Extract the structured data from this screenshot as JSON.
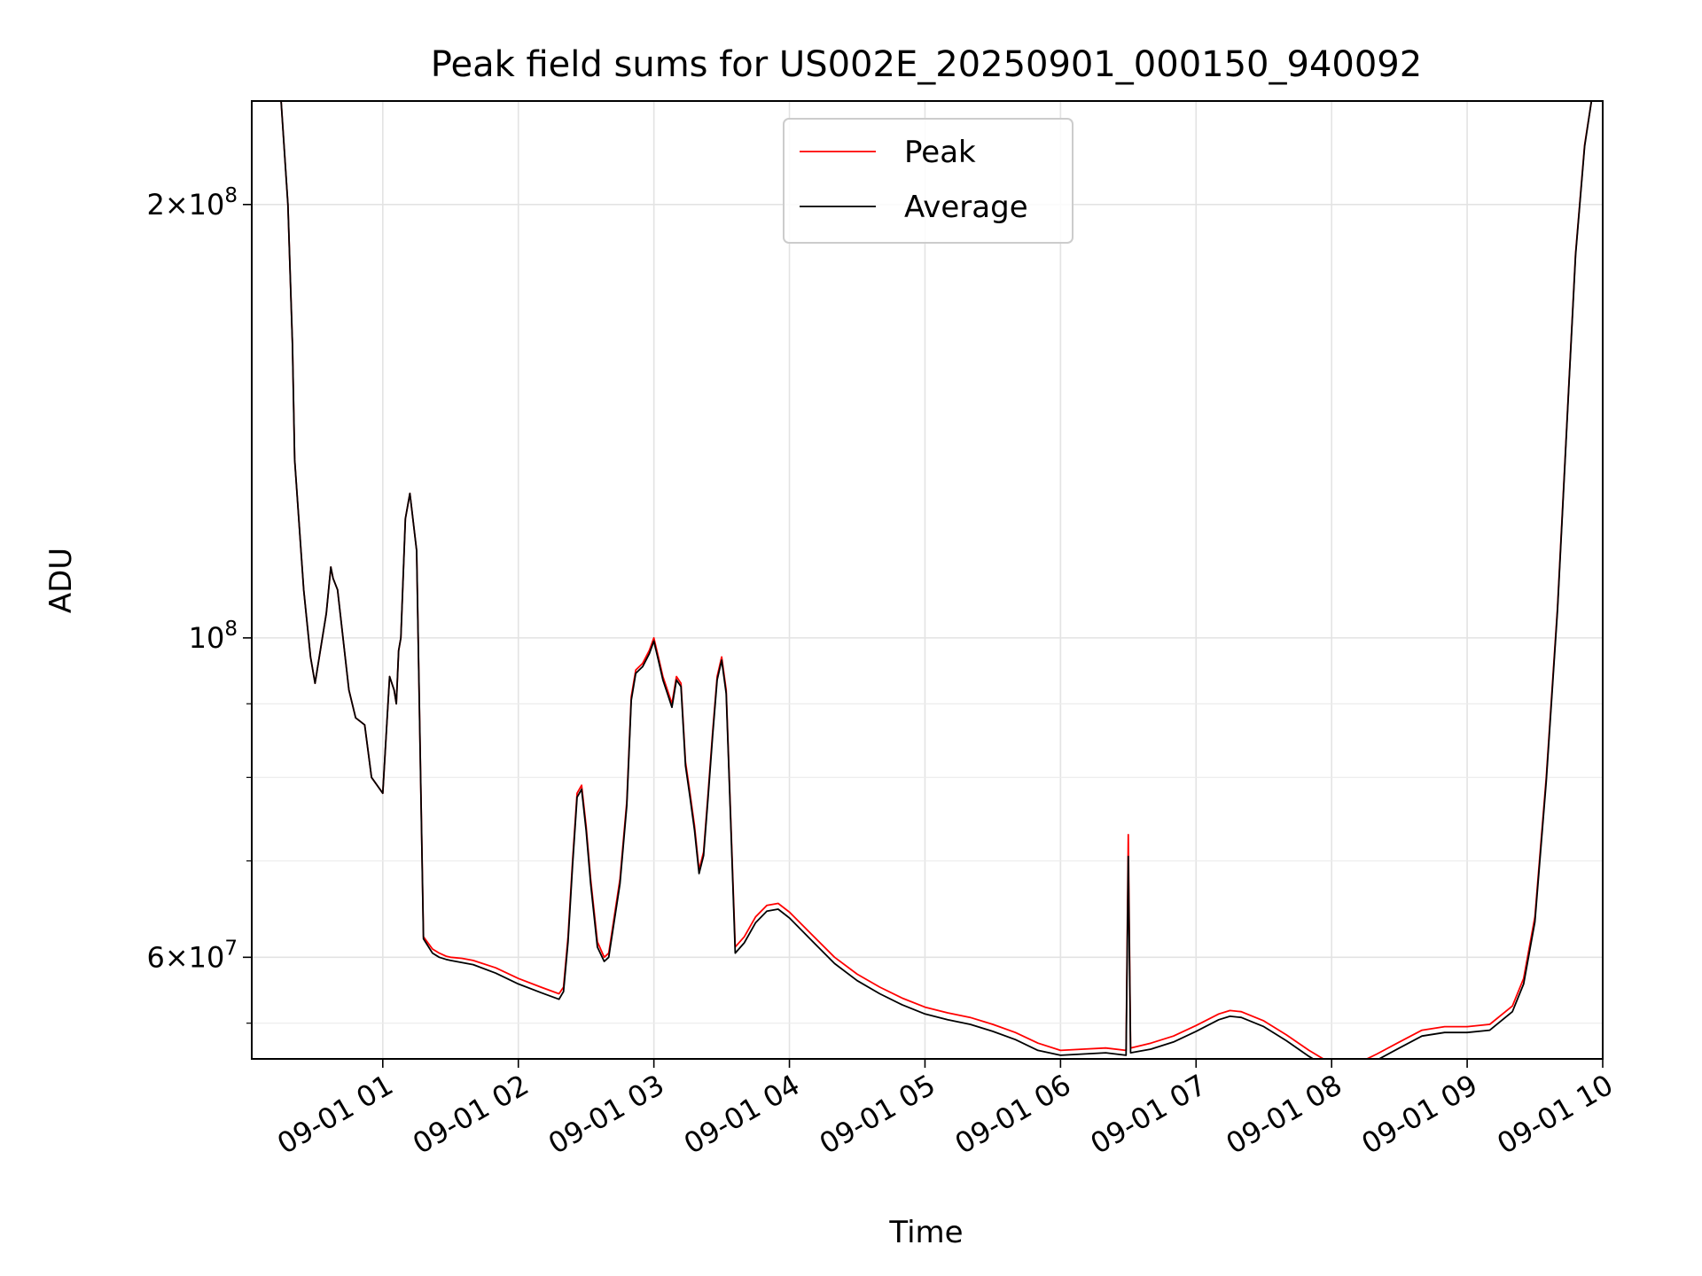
{
  "chart_data": {
    "type": "line",
    "title": "Peak field sums for US002E_20250901_000150_940092",
    "xlabel": "Time",
    "ylabel": "ADU",
    "yscale": "log",
    "xlim": [
      "2025-09-01 00:02",
      "2025-09-01 10:00"
    ],
    "ylim": [
      51000000,
      236000000
    ],
    "grid": true,
    "legend_position": "top-center",
    "x_ticks": [
      {
        "value": "2025-09-01 01:00",
        "label": "09-01 01"
      },
      {
        "value": "2025-09-01 02:00",
        "label": "09-01 02"
      },
      {
        "value": "2025-09-01 03:00",
        "label": "09-01 03"
      },
      {
        "value": "2025-09-01 04:00",
        "label": "09-01 04"
      },
      {
        "value": "2025-09-01 05:00",
        "label": "09-01 05"
      },
      {
        "value": "2025-09-01 06:00",
        "label": "09-01 06"
      },
      {
        "value": "2025-09-01 07:00",
        "label": "09-01 07"
      },
      {
        "value": "2025-09-01 08:00",
        "label": "09-01 08"
      },
      {
        "value": "2025-09-01 09:00",
        "label": "09-01 09"
      },
      {
        "value": "2025-09-01 10:00",
        "label": "09-01 10"
      }
    ],
    "y_ticks": [
      {
        "value": 60000000,
        "mantissa": "6",
        "exponent": "7"
      },
      {
        "value": 100000000,
        "mantissa": "",
        "exponent": "8"
      },
      {
        "value": 200000000,
        "mantissa": "2",
        "exponent": "8"
      }
    ],
    "y_minor_ticks": [
      54000000,
      70000000,
      80000000,
      90000000
    ],
    "x_times": [
      "00:02",
      "00:10",
      "00:15",
      "00:18",
      "00:20",
      "00:21",
      "00:25",
      "00:28",
      "00:30",
      "00:35",
      "00:37",
      "00:38",
      "00:40",
      "00:45",
      "00:48",
      "00:52",
      "00:55",
      "01:00",
      "01:03",
      "01:05",
      "01:06",
      "01:07",
      "01:08",
      "01:10",
      "01:12",
      "01:15",
      "01:18",
      "01:22",
      "01:25",
      "01:28",
      "01:30",
      "01:35",
      "01:40",
      "01:50",
      "02:00",
      "02:10",
      "02:18",
      "02:20",
      "02:22",
      "02:24",
      "02:26",
      "02:28",
      "02:30",
      "02:32",
      "02:35",
      "02:38",
      "02:40",
      "02:45",
      "02:48",
      "02:50",
      "02:52",
      "02:55",
      "02:58",
      "03:00",
      "03:02",
      "03:04",
      "03:06",
      "03:08",
      "03:10",
      "03:12",
      "03:14",
      "03:16",
      "03:18",
      "03:20",
      "03:22",
      "03:24",
      "03:26",
      "03:28",
      "03:30",
      "03:32",
      "03:34",
      "03:36",
      "03:40",
      "03:45",
      "03:50",
      "03:55",
      "04:00",
      "04:10",
      "04:20",
      "04:30",
      "04:40",
      "04:50",
      "05:00",
      "05:10",
      "05:20",
      "05:30",
      "05:40",
      "05:50",
      "06:00",
      "06:10",
      "06:20",
      "06:29",
      "06:30",
      "06:31",
      "06:40",
      "06:50",
      "07:00",
      "07:10",
      "07:15",
      "07:20",
      "07:30",
      "07:40",
      "07:50",
      "08:00",
      "08:05",
      "08:10",
      "08:20",
      "08:30",
      "08:40",
      "08:50",
      "09:00",
      "09:10",
      "09:20",
      "09:25",
      "09:30",
      "09:35",
      "09:40",
      "09:45",
      "09:48",
      "09:52",
      "09:55",
      "09:58",
      "10:00"
    ],
    "series": [
      {
        "name": "Peak",
        "color": "#ff0000",
        "values": [
          236000000,
          236000000,
          236000000,
          200000000,
          160000000,
          133000000,
          108000000,
          97000000,
          93000000,
          104000000,
          112000000,
          110000000,
          108000000,
          92000000,
          88000000,
          87000000,
          80000000,
          78000000,
          94000000,
          92000000,
          90000000,
          98000000,
          100000000,
          121000000,
          126000000,
          115000000,
          62000000,
          60800000,
          60400000,
          60100000,
          60000000,
          59900000,
          59700000,
          59000000,
          58000000,
          57200000,
          56600000,
          57200000,
          62000000,
          70000000,
          78000000,
          79000000,
          74000000,
          68000000,
          61500000,
          60000000,
          60400000,
          68000000,
          77000000,
          91000000,
          95000000,
          96000000,
          98000000,
          100000000,
          97000000,
          94000000,
          92000000,
          90000000,
          94000000,
          93000000,
          82000000,
          78000000,
          74000000,
          69000000,
          71000000,
          78000000,
          86000000,
          94000000,
          97000000,
          92000000,
          75000000,
          61000000,
          62000000,
          64000000,
          65200000,
          65400000,
          64500000,
          62200000,
          60000000,
          58400000,
          57200000,
          56200000,
          55400000,
          54900000,
          54500000,
          53900000,
          53200000,
          52300000,
          51700000,
          51800000,
          51900000,
          51700000,
          73000000,
          51900000,
          52300000,
          52900000,
          53800000,
          54800000,
          55100000,
          55000000,
          54200000,
          53000000,
          51700000,
          50600000,
          50300000,
          50500000,
          51400000,
          52400000,
          53400000,
          53700000,
          53700000,
          53900000,
          55500000,
          58000000,
          64000000,
          80000000,
          105000000,
          150000000,
          185000000,
          220000000,
          236000000,
          236000000,
          236000000
        ]
      },
      {
        "name": "Average",
        "color": "#000000",
        "values": [
          236000000,
          236000000,
          236000000,
          200000000,
          160000000,
          133000000,
          108000000,
          97000000,
          93000000,
          104000000,
          112000000,
          110000000,
          108000000,
          92000000,
          88000000,
          87000000,
          80000000,
          78000000,
          94000000,
          92000000,
          90000000,
          98000000,
          100000000,
          121000000,
          126000000,
          115000000,
          61800000,
          60400000,
          60000000,
          59800000,
          59700000,
          59500000,
          59300000,
          58500000,
          57500000,
          56700000,
          56100000,
          56800000,
          61500000,
          69500000,
          77500000,
          78500000,
          73500000,
          67500000,
          61000000,
          59600000,
          60000000,
          67500000,
          76500000,
          90500000,
          94500000,
          95500000,
          97500000,
          99500000,
          96500000,
          93500000,
          91500000,
          89500000,
          93500000,
          92500000,
          81500000,
          77500000,
          73500000,
          68600000,
          70600000,
          77500000,
          85500000,
          93500000,
          96500000,
          91500000,
          74500000,
          60400000,
          61400000,
          63400000,
          64600000,
          64800000,
          63900000,
          61600000,
          59400000,
          57800000,
          56600000,
          55600000,
          54800000,
          54300000,
          53900000,
          53300000,
          52600000,
          51700000,
          51300000,
          51400000,
          51500000,
          51300000,
          70500000,
          51500000,
          51800000,
          52400000,
          53300000,
          54300000,
          54600000,
          54500000,
          53700000,
          52500000,
          51200000,
          50100000,
          49800000,
          50000000,
          50900000,
          51900000,
          52900000,
          53200000,
          53200000,
          53400000,
          55000000,
          57500000,
          63500000,
          79500000,
          104500000,
          149500000,
          184500000,
          219500000,
          236000000,
          236000000,
          236000000
        ]
      }
    ]
  }
}
